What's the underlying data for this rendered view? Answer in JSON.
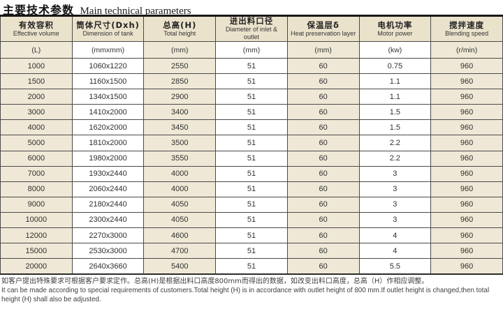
{
  "page_title": {
    "zh": "主要技术参数",
    "en": "Main technical parameters"
  },
  "table": {
    "columns": [
      {
        "zh": "有效容积",
        "en": "Effective volume",
        "unit": "(L)"
      },
      {
        "zh": "筒体尺寸(Dxh)",
        "en": "Dimension of tank",
        "unit": "(mmxmm)"
      },
      {
        "zh": "总高(H)",
        "en": "Total height",
        "unit": "(mm)"
      },
      {
        "zh": "进出料口径",
        "en": "Diameter of inlet & outlet",
        "unit": "(mm)"
      },
      {
        "zh": "保温层δ",
        "en": "Heat preservation layer",
        "unit": "(mm)"
      },
      {
        "zh": "电机功率",
        "en": "Motor power",
        "unit": "(kw)"
      },
      {
        "zh": "搅拌速度",
        "en": "Blending speed",
        "unit": "(r/min)"
      }
    ],
    "rows": [
      [
        "1000",
        "1060x1220",
        "2550",
        "51",
        "60",
        "0.75",
        "960"
      ],
      [
        "1500",
        "1160x1500",
        "2850",
        "51",
        "60",
        "1.1",
        "960"
      ],
      [
        "2000",
        "1340x1500",
        "2900",
        "51",
        "60",
        "1.1",
        "960"
      ],
      [
        "3000",
        "1410x2000",
        "3400",
        "51",
        "60",
        "1.5",
        "960"
      ],
      [
        "4000",
        "1620x2000",
        "3450",
        "51",
        "60",
        "1.5",
        "960"
      ],
      [
        "5000",
        "1810x2000",
        "3500",
        "51",
        "60",
        "2.2",
        "960"
      ],
      [
        "6000",
        "1980x2000",
        "3550",
        "51",
        "60",
        "2.2",
        "960"
      ],
      [
        "7000",
        "1930x2440",
        "4000",
        "51",
        "60",
        "3",
        "960"
      ],
      [
        "8000",
        "2060x2440",
        "4000",
        "51",
        "60",
        "3",
        "960"
      ],
      [
        "9000",
        "2180x2440",
        "4050",
        "51",
        "60",
        "3",
        "960"
      ],
      [
        "10000",
        "2300x2440",
        "4050",
        "51",
        "60",
        "3",
        "960"
      ],
      [
        "12000",
        "2270x3000",
        "4600",
        "51",
        "60",
        "4",
        "960"
      ],
      [
        "15000",
        "2530x3000",
        "4700",
        "51",
        "60",
        "4",
        "960"
      ],
      [
        "20000",
        "2640x3660",
        "5400",
        "51",
        "60",
        "5.5",
        "960"
      ]
    ]
  },
  "footnote": {
    "zh": "如客户提出特殊要求可根据客户要求定作。总高(H)是根据出料口高度800mm而得出的数据，如改变出料口高度，总高（H）作相应调整。",
    "en": "It can be made according to special requirements of customers.Total height (H) is in accordance with outlet height of 800 mm.If outlet height is changed,then total height (H) shall also be adjusted."
  },
  "colors": {
    "cell_beige": "#efe8d6",
    "header_beige": "#ebe2cc",
    "border_dark": "#4a4a4a"
  }
}
